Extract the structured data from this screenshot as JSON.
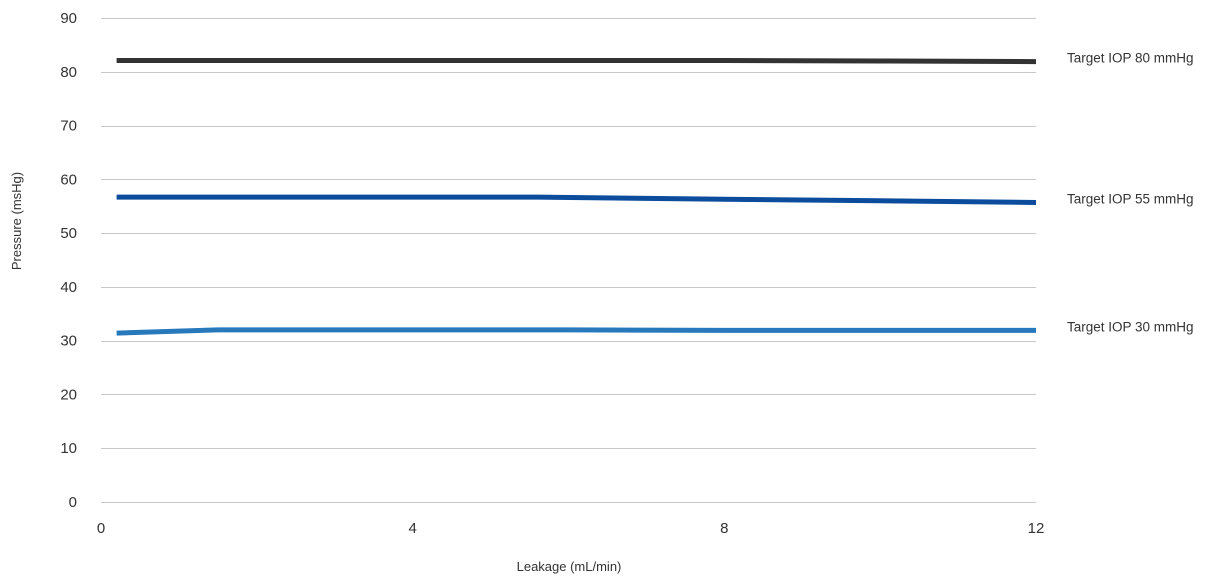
{
  "chart_data": {
    "type": "line",
    "title": "",
    "xlabel": "Leakage (mL/min)",
    "ylabel": "Pressure (msHg)",
    "xlim": [
      0,
      12
    ],
    "ylim": [
      0,
      90
    ],
    "x_ticks": [
      0,
      4,
      8,
      12
    ],
    "y_ticks": [
      0,
      10,
      20,
      30,
      40,
      50,
      60,
      70,
      80,
      90
    ],
    "grid": "horizontal",
    "legend": "right-end labels",
    "series": [
      {
        "name": "Target IOP 80 mmHg",
        "color": "#333333",
        "x": [
          0.2,
          2,
          4,
          6,
          8,
          10,
          12
        ],
        "y": [
          82.1,
          82.1,
          82.1,
          82.1,
          82.1,
          82.0,
          81.9
        ]
      },
      {
        "name": "Target IOP 55 mmHg",
        "color": "#0c4c9c",
        "x": [
          0.2,
          2,
          4,
          5.6,
          8,
          10,
          12
        ],
        "y": [
          56.7,
          56.7,
          56.7,
          56.7,
          56.3,
          56.0,
          55.7
        ]
      },
      {
        "name": "Target IOP 30 mmHg",
        "color": "#2878bc",
        "x": [
          0.2,
          1.5,
          4,
          6,
          8,
          10,
          12
        ],
        "y": [
          31.4,
          32.0,
          32.0,
          32.0,
          31.9,
          31.9,
          31.9
        ]
      }
    ]
  }
}
